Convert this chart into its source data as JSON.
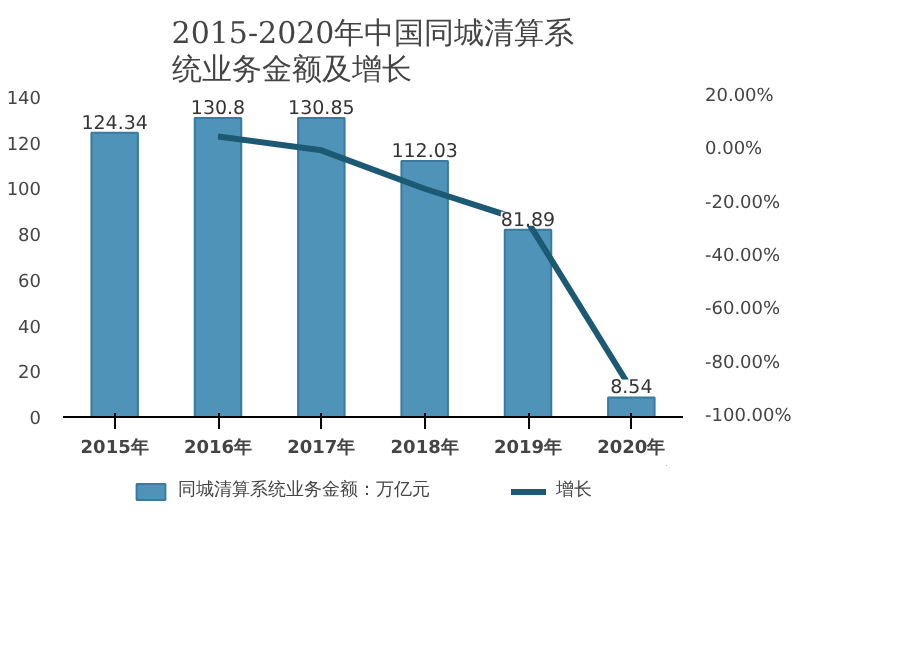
{
  "chart_data": {
    "type": "bar",
    "title": "2015-2020年中国同城清算系统业务金额及增长",
    "categories": [
      "2015年",
      "2016年",
      "2017年",
      "2018年",
      "2019年",
      "2020年"
    ],
    "series": [
      {
        "name": "同城清算系统业务金额：万亿元",
        "color": "#4f93b8",
        "values": [
          124.34,
          130.8,
          130.85,
          112.03,
          81.89,
          8.54
        ],
        "value_labels": [
          "124.34",
          "130.8",
          "130.85",
          "112.03",
          "81.89",
          "8.54"
        ]
      },
      {
        "name": "增长",
        "type": "line",
        "axis": "y2",
        "color": "#1b5a72",
        "values": [
          null,
          5.2,
          0.0,
          -14.4,
          -26.9,
          -89.6
        ]
      }
    ],
    "ylim": [
      0,
      140
    ],
    "yticks": [
      0,
      20,
      40,
      60,
      80,
      100,
      120,
      140
    ],
    "y2lim": [
      -100,
      20
    ],
    "y2ticks": [
      {
        "value": 20,
        "label": "20.00%"
      },
      {
        "value": 0,
        "label": "0.00%"
      },
      {
        "value": -20,
        "label": "-20.00%"
      },
      {
        "value": -40,
        "label": "-40.00%"
      },
      {
        "value": -60,
        "label": "-60.00%"
      },
      {
        "value": -80,
        "label": "-80.00%"
      },
      {
        "value": -100,
        "label": "-100.00%"
      }
    ],
    "grid": false,
    "legend": "bottom",
    "marker": "none",
    "line_style": "solid"
  }
}
